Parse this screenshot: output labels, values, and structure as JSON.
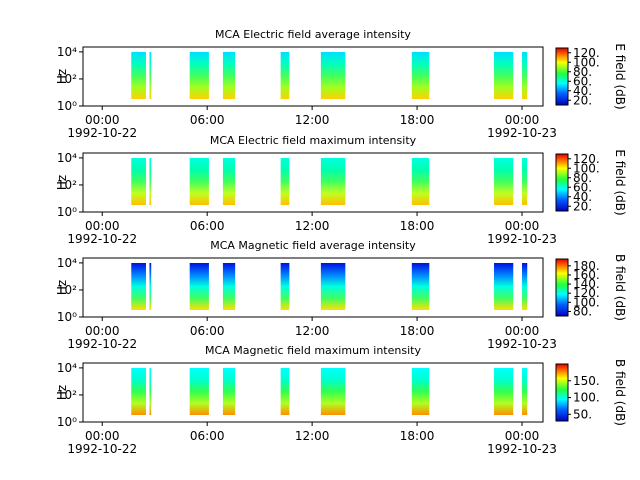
{
  "chart_data": [
    {
      "type": "spectrogram",
      "title": "MCA  Electric field average intensity",
      "ylabel": "Hz",
      "log_y": true,
      "xlim": [
        -1.1,
        25.2
      ],
      "xticks": [
        {
          "value": 0,
          "label": "00:00"
        },
        {
          "value": 6,
          "label": "06:00"
        },
        {
          "value": 12,
          "label": "12:00"
        },
        {
          "value": 18,
          "label": "18:00"
        },
        {
          "value": 24,
          "label": "00:00"
        }
      ],
      "dates": [
        "1992-10-22",
        "1992-10-23"
      ],
      "ylim": [
        1,
        23000
      ],
      "yticks": [
        {
          "value": 1,
          "label": "10⁰"
        },
        {
          "value": 100,
          "label": "10²"
        },
        {
          "value": 10000,
          "label": "10⁴"
        }
      ],
      "intervals": [
        [
          1.66,
          2.5
        ],
        [
          2.7,
          2.8
        ],
        [
          5.0,
          6.1
        ],
        [
          6.9,
          7.6
        ],
        [
          10.2,
          10.7
        ],
        [
          12.5,
          13.9
        ],
        [
          17.7,
          18.7
        ],
        [
          22.4,
          23.5
        ],
        [
          24.0,
          24.3
        ]
      ],
      "colors": [
        "#00e0ff",
        "#00ffc0",
        "#40ff60",
        "#a0ff20",
        "#ffd000"
      ],
      "colorbar": {
        "label": "E field (dB)",
        "lim": [
          10,
          130
        ],
        "ticks": [
          {
            "value": 20,
            "label": "20."
          },
          {
            "value": 40,
            "label": "40."
          },
          {
            "value": 60,
            "label": "60."
          },
          {
            "value": 80,
            "label": "80."
          },
          {
            "value": 100,
            "label": "100."
          },
          {
            "value": 120,
            "label": "120."
          }
        ]
      }
    },
    {
      "type": "spectrogram",
      "title": "MCA  Electric field maximum intensity",
      "ylabel": "Hz",
      "log_y": true,
      "xlim": [
        -1.1,
        25.2
      ],
      "xticks": [
        {
          "value": 0,
          "label": "00:00"
        },
        {
          "value": 6,
          "label": "06:00"
        },
        {
          "value": 12,
          "label": "12:00"
        },
        {
          "value": 18,
          "label": "18:00"
        },
        {
          "value": 24,
          "label": "00:00"
        }
      ],
      "dates": [
        "1992-10-22",
        "1992-10-23"
      ],
      "ylim": [
        1,
        23000
      ],
      "yticks": [
        {
          "value": 1,
          "label": "10⁰"
        },
        {
          "value": 100,
          "label": "10²"
        },
        {
          "value": 10000,
          "label": "10⁴"
        }
      ],
      "intervals": [
        [
          1.66,
          2.5
        ],
        [
          2.7,
          2.8
        ],
        [
          5.0,
          6.1
        ],
        [
          6.9,
          7.6
        ],
        [
          10.2,
          10.7
        ],
        [
          12.5,
          13.9
        ],
        [
          17.7,
          18.7
        ],
        [
          22.4,
          23.5
        ],
        [
          24.0,
          24.3
        ]
      ],
      "colors": [
        "#00ffe0",
        "#00ffb0",
        "#40ff60",
        "#c0ff20",
        "#ffc000"
      ],
      "colorbar": {
        "label": "E field (dB)",
        "lim": [
          10,
          130
        ],
        "ticks": [
          {
            "value": 20,
            "label": "20."
          },
          {
            "value": 40,
            "label": "40."
          },
          {
            "value": 60,
            "label": "60."
          },
          {
            "value": 80,
            "label": "80."
          },
          {
            "value": 100,
            "label": "100."
          },
          {
            "value": 120,
            "label": "120."
          }
        ]
      }
    },
    {
      "type": "spectrogram",
      "title": "MCA  Magnetic field average intensity",
      "ylabel": "Hz",
      "log_y": true,
      "xlim": [
        -1.1,
        25.2
      ],
      "xticks": [
        {
          "value": 0,
          "label": "00:00"
        },
        {
          "value": 6,
          "label": "06:00"
        },
        {
          "value": 12,
          "label": "12:00"
        },
        {
          "value": 18,
          "label": "18:00"
        },
        {
          "value": 24,
          "label": "00:00"
        }
      ],
      "dates": [
        "1992-10-22",
        "1992-10-23"
      ],
      "ylim": [
        1,
        23000
      ],
      "yticks": [
        {
          "value": 1,
          "label": "10⁰"
        },
        {
          "value": 100,
          "label": "10²"
        },
        {
          "value": 10000,
          "label": "10⁴"
        }
      ],
      "intervals": [
        [
          1.66,
          2.5
        ],
        [
          2.7,
          2.8
        ],
        [
          5.0,
          6.1
        ],
        [
          6.9,
          7.6
        ],
        [
          10.2,
          10.7
        ],
        [
          12.5,
          13.9
        ],
        [
          17.7,
          18.7
        ],
        [
          22.4,
          23.5
        ],
        [
          24.0,
          24.3
        ]
      ],
      "colors": [
        "#0010e0",
        "#0080ff",
        "#00ffe0",
        "#40ff60",
        "#ffe000"
      ],
      "colorbar": {
        "label": "B field (dB)",
        "lim": [
          70,
          195
        ],
        "ticks": [
          {
            "value": 80,
            "label": "80."
          },
          {
            "value": 100,
            "label": "100."
          },
          {
            "value": 120,
            "label": "120."
          },
          {
            "value": 140,
            "label": "140."
          },
          {
            "value": 160,
            "label": "160."
          },
          {
            "value": 180,
            "label": "180."
          }
        ]
      }
    },
    {
      "type": "spectrogram",
      "title": "MCA  Magnetic field maximum intensity",
      "ylabel": "Hz",
      "log_y": true,
      "xlim": [
        -1.1,
        25.2
      ],
      "xticks": [
        {
          "value": 0,
          "label": "00:00"
        },
        {
          "value": 6,
          "label": "06:00"
        },
        {
          "value": 12,
          "label": "12:00"
        },
        {
          "value": 18,
          "label": "18:00"
        },
        {
          "value": 24,
          "label": "00:00"
        }
      ],
      "dates": [
        "1992-10-22",
        "1992-10-23"
      ],
      "ylim": [
        1,
        23000
      ],
      "yticks": [
        {
          "value": 1,
          "label": "10⁰"
        },
        {
          "value": 100,
          "label": "10²"
        },
        {
          "value": 10000,
          "label": "10⁴"
        }
      ],
      "intervals": [
        [
          1.66,
          2.5
        ],
        [
          2.7,
          2.8
        ],
        [
          5.0,
          6.1
        ],
        [
          6.9,
          7.6
        ],
        [
          10.2,
          10.7
        ],
        [
          12.5,
          13.9
        ],
        [
          17.7,
          18.7
        ],
        [
          22.4,
          23.5
        ],
        [
          24.0,
          24.3
        ]
      ],
      "colors": [
        "#00ffff",
        "#00ffd0",
        "#30ff50",
        "#b0ff20",
        "#ff9000"
      ],
      "colorbar": {
        "label": "B field (dB)",
        "lim": [
          30,
          200
        ],
        "ticks": [
          {
            "value": 50,
            "label": "50."
          },
          {
            "value": 100,
            "label": "100."
          },
          {
            "value": 150,
            "label": "150."
          }
        ]
      }
    }
  ]
}
